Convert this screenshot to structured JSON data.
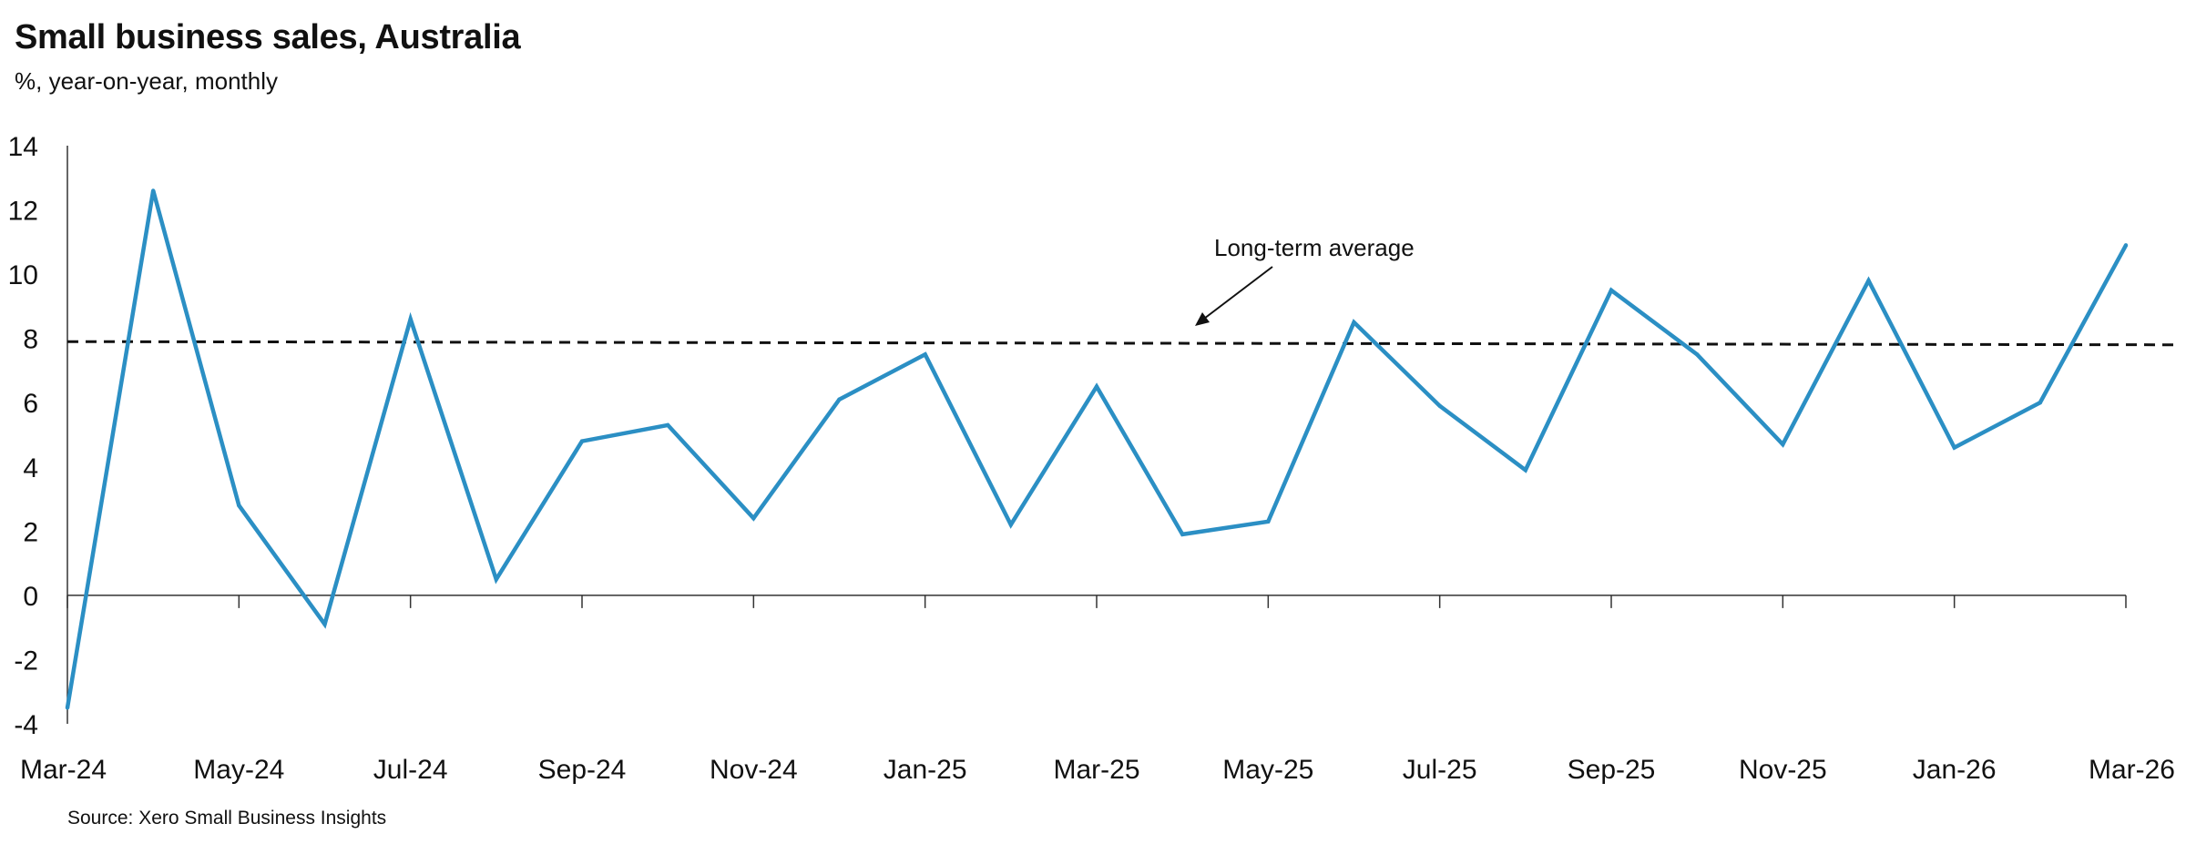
{
  "chart_data": {
    "type": "line",
    "title": "Small business sales, Australia",
    "subtitle": "%, year-on-year, monthly",
    "xlabel": "",
    "ylabel": "",
    "x": [
      "Mar-24",
      "Apr-24",
      "May-24",
      "Jun-24",
      "Jul-24",
      "Aug-24",
      "Sep-24",
      "Oct-24",
      "Nov-24",
      "Dec-24",
      "Jan-25",
      "Feb-25",
      "Mar-25",
      "Apr-25",
      "May-25",
      "Jun-25",
      "Jul-25",
      "Aug-25",
      "Sep-25",
      "Oct-25",
      "Nov-25",
      "Dec-25",
      "Jan-26",
      "Feb-26",
      "Mar-26"
    ],
    "x_tick_labels": [
      "Mar-24",
      "May-24",
      "Jul-24",
      "Sep-24",
      "Nov-24",
      "Jan-25",
      "Mar-25",
      "May-25",
      "Jul-25",
      "Sep-25",
      "Nov-25",
      "Jan-26",
      "Mar-26"
    ],
    "y_tick_labels": [
      "14",
      "12",
      "10",
      "8",
      "6",
      "4",
      "2",
      "0",
      "-2",
      "-4"
    ],
    "ylim": [
      -4,
      14
    ],
    "grid": false,
    "series": [
      {
        "values": [
          -3.5,
          12.6,
          2.8,
          -0.9,
          8.6,
          0.5,
          4.8,
          5.3,
          2.4,
          6.1,
          7.5,
          2.2,
          6.5,
          1.9,
          2.3,
          8.5,
          5.9,
          3.9,
          9.5,
          7.5,
          4.7,
          9.8,
          4.6,
          6.0,
          10.9
        ],
        "color": "#2b8fc4"
      }
    ],
    "reference_line": {
      "start_value": 7.9,
      "end_value": 7.8,
      "color": "#111111",
      "style": "dashed"
    },
    "annotations": [
      {
        "text": "Long-term average"
      }
    ]
  },
  "source": "Source: Xero Small Business Insights"
}
